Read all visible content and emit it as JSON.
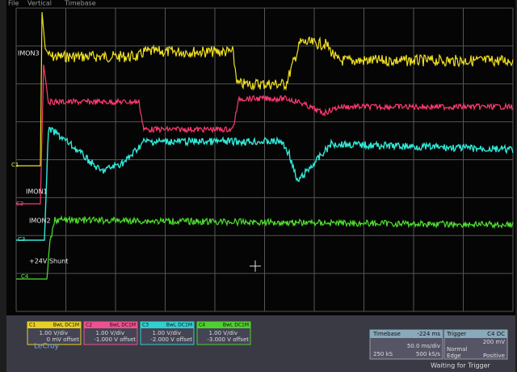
{
  "menu": [
    "File",
    "Vertical",
    "Timebase"
  ],
  "trace_labels": [
    "IMON3",
    "IMON1",
    "IMON2",
    "+24V Shunt"
  ],
  "channels": [
    {
      "name": "C1",
      "coupling": "BwL DC1M",
      "scale": "1.00 V/div",
      "offset": "0 mV offset"
    },
    {
      "name": "C2",
      "coupling": "BwL DC1M",
      "scale": "1.00 V/div",
      "offset": "-1.000 V offset"
    },
    {
      "name": "C3",
      "coupling": "BwL DC1M",
      "scale": "1.00 V/div",
      "offset": "-2.000 V offset"
    },
    {
      "name": "C4",
      "coupling": "BwL DC1M",
      "scale": "1.00 V/div",
      "offset": "-3.000 V offset"
    }
  ],
  "brand": "LeCroy",
  "timebase": {
    "title": "Timebase",
    "delay": "-224 ms",
    "scale": "50.0 ms/div",
    "samples": "250 kS",
    "rate": "500 kS/s"
  },
  "trigger": {
    "title": "Trigger",
    "source": "C4 DC",
    "level": "200 mV",
    "mode": "Normal",
    "type": "Edge",
    "slope": "Positive"
  },
  "status": "Waiting for Trigger"
}
